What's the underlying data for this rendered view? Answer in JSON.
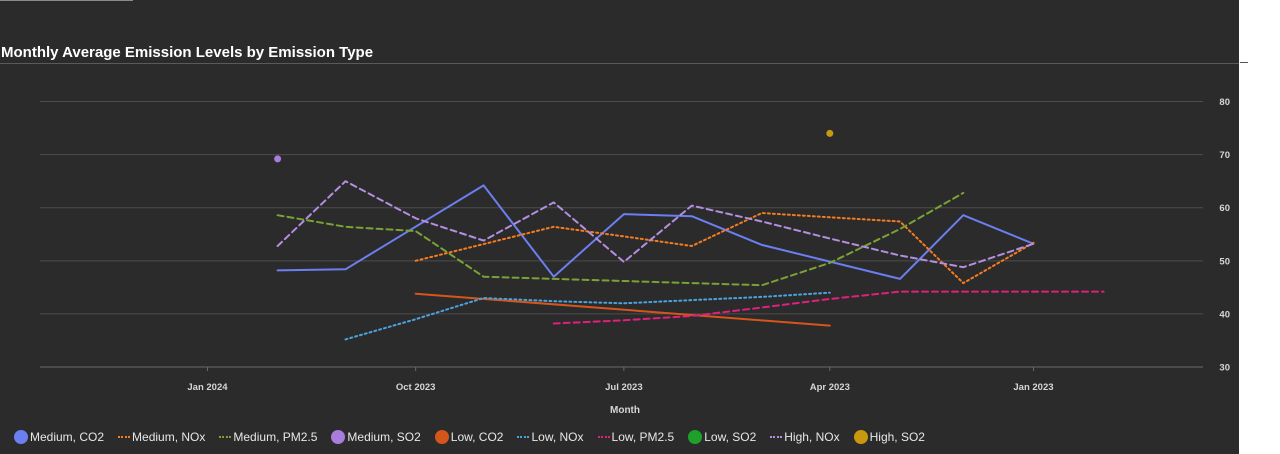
{
  "title": "Monthly Average Emission Levels by Emission Type",
  "chart_data": {
    "type": "line",
    "title": "Monthly Average Emission Levels by Emission Type",
    "xlabel": "Month",
    "ylabel": "",
    "x_axis": {
      "type": "date",
      "reversed": true,
      "min": "2024-03-15",
      "max": "2022-10-15",
      "ticks": [
        "2024-01-01",
        "2023-10-01",
        "2023-07-01",
        "2023-04-01",
        "2023-01-01"
      ],
      "tick_labels": [
        "Jan 2024",
        "Oct 2023",
        "Jul 2023",
        "Apr 2023",
        "Jan 2023"
      ]
    },
    "y_axis": {
      "position": "right",
      "min": 30,
      "max": 85,
      "ticks": [
        30,
        40,
        50,
        60,
        70,
        80
      ],
      "grid": true
    },
    "legend_position": "bottom",
    "series": [
      {
        "name": "Medium, CO2",
        "color": "#6b7ff0",
        "style": "solid",
        "points": [
          [
            "2023-12-01",
            48.2
          ],
          [
            "2023-11-01",
            48.4
          ],
          [
            "2023-09-01",
            64.2
          ],
          [
            "2023-08-01",
            47.0
          ],
          [
            "2023-07-01",
            58.8
          ],
          [
            "2023-06-01",
            58.4
          ],
          [
            "2023-05-01",
            53.0
          ],
          [
            "2023-03-01",
            46.6
          ],
          [
            "2023-02-01",
            58.6
          ],
          [
            "2023-01-01",
            53.2
          ]
        ]
      },
      {
        "name": "Medium, NOx",
        "color": "#f57c20",
        "style": "dotted",
        "points": [
          [
            "2023-10-01",
            50.0
          ],
          [
            "2023-08-01",
            56.4
          ],
          [
            "2023-07-01",
            54.6
          ],
          [
            "2023-06-01",
            52.8
          ],
          [
            "2023-05-01",
            59.0
          ],
          [
            "2023-04-01",
            58.2
          ],
          [
            "2023-03-01",
            57.4
          ],
          [
            "2023-02-01",
            45.8
          ],
          [
            "2023-01-01",
            53.4
          ]
        ]
      },
      {
        "name": "Medium, PM2.5",
        "color": "#7aa236",
        "style": "dashed",
        "points": [
          [
            "2023-12-01",
            58.6
          ],
          [
            "2023-11-01",
            56.4
          ],
          [
            "2023-10-01",
            55.6
          ],
          [
            "2023-09-01",
            47.0
          ],
          [
            "2023-08-01",
            46.6
          ],
          [
            "2023-07-01",
            46.2
          ],
          [
            "2023-06-01",
            45.8
          ],
          [
            "2023-05-01",
            45.4
          ],
          [
            "2023-04-01",
            49.6
          ],
          [
            "2023-03-01",
            56.0
          ],
          [
            "2023-02-01",
            62.8
          ]
        ]
      },
      {
        "name": "Medium, SO2",
        "color": "#a97ddb",
        "style": "dot",
        "points": [
          [
            "2023-12-01",
            69.2
          ]
        ]
      },
      {
        "name": "Low, CO2",
        "color": "#d5561b",
        "style": "solid",
        "points": [
          [
            "2023-10-01",
            43.8
          ],
          [
            "2023-04-01",
            37.8
          ]
        ]
      },
      {
        "name": "Low, NOx",
        "color": "#4aa3df",
        "style": "dotted",
        "points": [
          [
            "2023-11-01",
            35.2
          ],
          [
            "2023-10-01",
            39.0
          ],
          [
            "2023-09-01",
            43.0
          ],
          [
            "2023-08-01",
            42.4
          ],
          [
            "2023-07-01",
            42.0
          ],
          [
            "2023-06-01",
            42.6
          ],
          [
            "2023-05-01",
            43.2
          ],
          [
            "2023-04-01",
            44.0
          ]
        ]
      },
      {
        "name": "Low, PM2.5",
        "color": "#e0207a",
        "style": "dashed",
        "points": [
          [
            "2023-08-01",
            38.2
          ],
          [
            "2023-07-01",
            38.8
          ],
          [
            "2023-06-01",
            39.6
          ],
          [
            "2023-05-01",
            41.2
          ],
          [
            "2023-04-01",
            42.8
          ],
          [
            "2023-03-01",
            44.2
          ],
          [
            "2023-02-01",
            44.2
          ],
          [
            "2023-01-01",
            44.2
          ],
          [
            "2022-12-01",
            44.2
          ]
        ]
      },
      {
        "name": "Low, SO2",
        "color": "#1fa02a",
        "style": "dot",
        "points": []
      },
      {
        "name": "High, NOx",
        "color": "#b48ee0",
        "style": "dashed",
        "points": [
          [
            "2023-12-01",
            52.8
          ],
          [
            "2023-11-01",
            65.0
          ],
          [
            "2023-10-01",
            58.0
          ],
          [
            "2023-09-01",
            53.8
          ],
          [
            "2023-08-01",
            61.0
          ],
          [
            "2023-07-01",
            49.8
          ],
          [
            "2023-06-01",
            60.4
          ],
          [
            "2023-05-01",
            57.4
          ],
          [
            "2023-04-01",
            54.2
          ],
          [
            "2023-03-01",
            51.0
          ],
          [
            "2023-02-01",
            48.8
          ],
          [
            "2023-01-01",
            53.2
          ]
        ]
      },
      {
        "name": "High, SO2",
        "color": "#c8980f",
        "style": "dot",
        "points": [
          [
            "2023-04-01",
            74.0
          ]
        ]
      }
    ]
  },
  "legend": [
    {
      "label": "Medium, CO2",
      "color": "#6b7ff0",
      "marker": "dot"
    },
    {
      "label": "Medium, NOx",
      "color": "#f57c20",
      "marker": "line"
    },
    {
      "label": "Medium, PM2.5",
      "color": "#7aa236",
      "marker": "line"
    },
    {
      "label": "Medium, SO2",
      "color": "#a97ddb",
      "marker": "dot"
    },
    {
      "label": "Low, CO2",
      "color": "#d5561b",
      "marker": "dot"
    },
    {
      "label": "Low, NOx",
      "color": "#4aa3df",
      "marker": "line"
    },
    {
      "label": "Low, PM2.5",
      "color": "#e0207a",
      "marker": "line"
    },
    {
      "label": "Low, SO2",
      "color": "#1fa02a",
      "marker": "dot"
    },
    {
      "label": "High, NOx",
      "color": "#b48ee0",
      "marker": "line"
    },
    {
      "label": "High, SO2",
      "color": "#c8980f",
      "marker": "dot"
    }
  ]
}
